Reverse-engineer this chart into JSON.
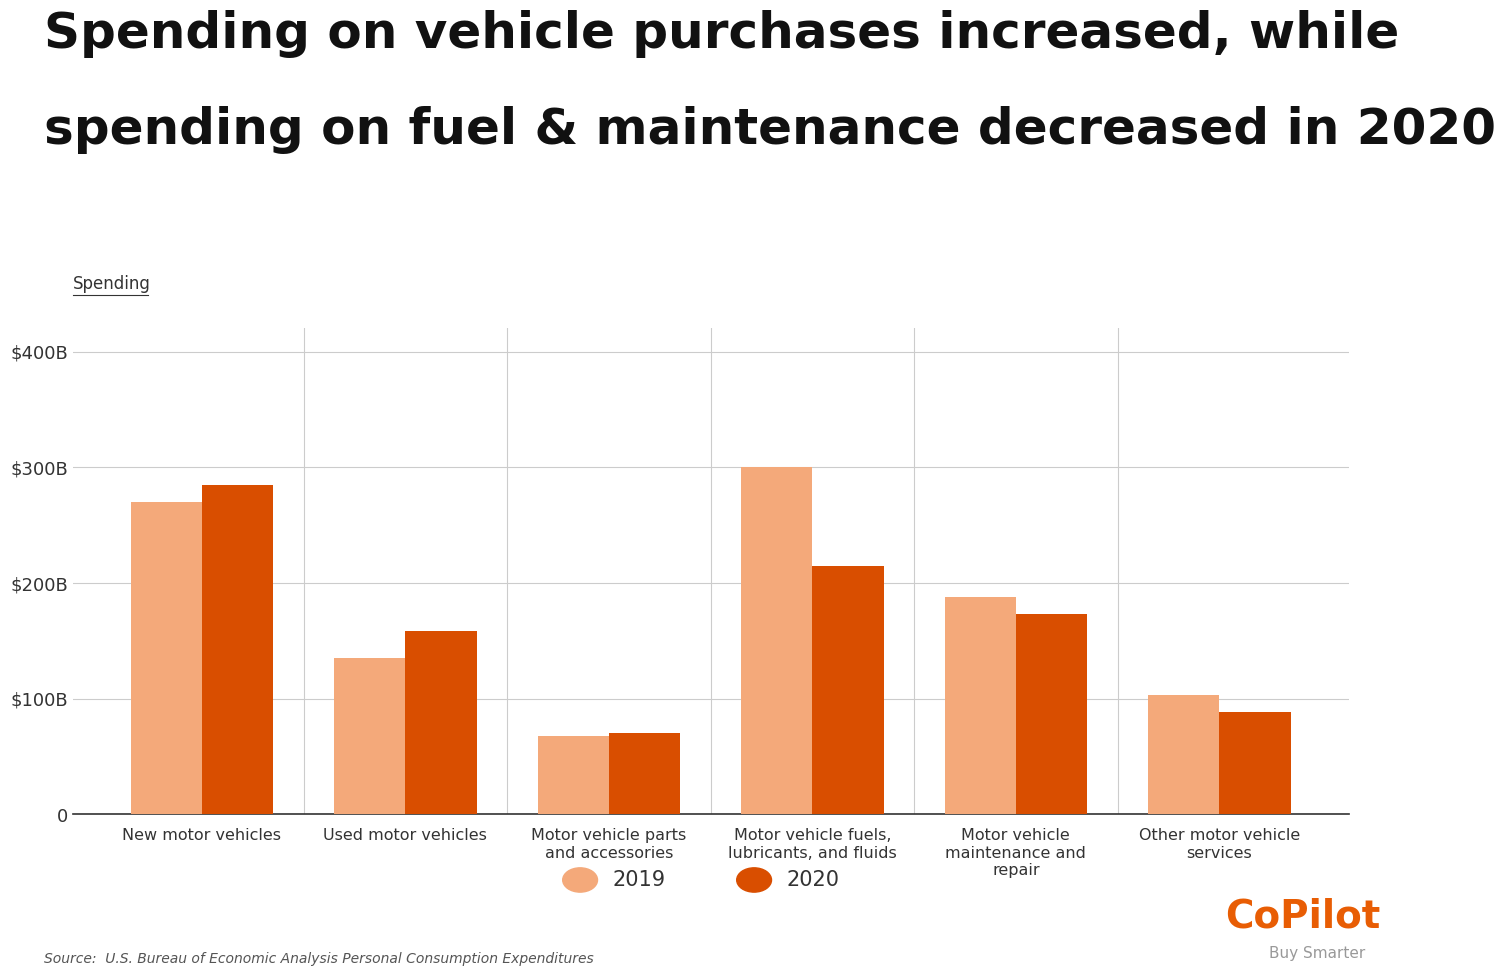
{
  "title_line1": "Spending on vehicle purchases increased, while",
  "title_line2": "spending on fuel & maintenance decreased in 2020",
  "ylabel": "Spending",
  "categories": [
    "New motor vehicles",
    "Used motor vehicles",
    "Motor vehicle parts\nand accessories",
    "Motor vehicle fuels,\nlubricants, and fluids",
    "Motor vehicle\nmaintenance and\nrepair",
    "Other motor vehicle\nservices"
  ],
  "values_2019": [
    270,
    135,
    68,
    300,
    188,
    103
  ],
  "values_2020": [
    285,
    158,
    70,
    215,
    173,
    88
  ],
  "color_2019": "#F4A97A",
  "color_2020": "#D94E00",
  "background_color": "#FFFFFF",
  "ytick_labels": [
    "0",
    "$100B",
    "$200B",
    "$300B",
    "$400B"
  ],
  "ytick_values": [
    0,
    100,
    200,
    300,
    400
  ],
  "source_text": "Source:  U.S. Bureau of Economic Analysis Personal Consumption Expenditures",
  "copilot_color": "#E85D04",
  "copilot_subtext": "Buy Smarter",
  "legend_2019": "2019",
  "legend_2020": "2020",
  "ylim": [
    0,
    420
  ]
}
